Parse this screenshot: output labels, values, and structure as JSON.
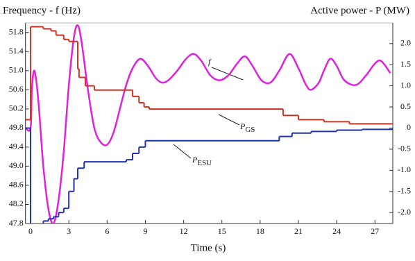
{
  "chart_data": {
    "type": "line",
    "y_label": "Frequency - f (Hz)",
    "y2_label": "Active power - P (MW)",
    "x_label": "Time (s)",
    "xlim": [
      -0.4,
      28.4
    ],
    "xticks": [
      0,
      3,
      6,
      9,
      12,
      15,
      18,
      21,
      24,
      27
    ],
    "ylim": [
      47.8,
      52.0
    ],
    "yticks": [
      51.8,
      51.4,
      {
        "value": 51.0,
        "label": "51.0"
      },
      50.6,
      50.2,
      49.8,
      49.4,
      {
        "value": 49.0,
        "label": "49.0"
      },
      48.6,
      48.2,
      47.8
    ],
    "y2lim": [
      -2.26,
      2.49
    ],
    "y2ticks": [
      {
        "value": 2,
        "label": "2.0"
      },
      1.5,
      {
        "value": 1,
        "label": "1.0"
      },
      0.5,
      0,
      -0.5,
      {
        "value": -1,
        "label": "-1.0"
      },
      -1.5,
      {
        "value": -2,
        "label": "-2.0"
      }
    ],
    "series": [
      {
        "name": "f",
        "color": "#e020e0",
        "style": "smooth",
        "x": [
          -0.4,
          0,
          0.1,
          0.3,
          0.6,
          1.0,
          1.4,
          1.8,
          2.2,
          2.6,
          3.0,
          3.4,
          3.7,
          4.0,
          4.5,
          5.0,
          5.5,
          6.0,
          6.5,
          7.0,
          7.5,
          8.0,
          8.6,
          9.2,
          9.8,
          10.3,
          10.8,
          11.5,
          12.2,
          12.8,
          13.4,
          14.1,
          14.8,
          15.5,
          16.2,
          16.8,
          17.4,
          18.1,
          18.8,
          19.5,
          20.3,
          21.0,
          21.6,
          22.0,
          22.6,
          23.0,
          23.5,
          24.0,
          24.6,
          25.5,
          26.3,
          27.0,
          27.5,
          28.2
        ],
        "values": [
          49.8,
          49.8,
          50.6,
          51.0,
          50.4,
          49.0,
          48.1,
          47.8,
          48.3,
          49.3,
          50.7,
          51.7,
          51.95,
          51.6,
          50.6,
          49.8,
          49.5,
          49.45,
          49.7,
          50.2,
          50.7,
          51.05,
          51.25,
          51.1,
          50.85,
          50.75,
          50.8,
          51.0,
          51.25,
          51.35,
          51.2,
          50.9,
          50.8,
          50.9,
          51.15,
          51.3,
          51.1,
          50.8,
          50.75,
          51.0,
          51.35,
          51.05,
          50.7,
          50.6,
          50.75,
          51.0,
          51.25,
          51.1,
          50.8,
          50.7,
          50.9,
          51.15,
          51.2,
          50.95
        ]
      },
      {
        "name": "PGS",
        "color": "#d03020",
        "style": "step",
        "axis": "y2",
        "x": [
          -0.4,
          0,
          1.0,
          1.6,
          2.0,
          2.6,
          3.0,
          3.7,
          3.8,
          4.3,
          5.0,
          8.0,
          8.5,
          8.9,
          9.3,
          19.8,
          21.0,
          23.0,
          25.0,
          28.4
        ],
        "values": [
          0.2,
          2.4,
          2.35,
          2.3,
          2.2,
          2.1,
          2.05,
          1.4,
          1.2,
          1.0,
          0.9,
          0.75,
          0.6,
          0.5,
          0.45,
          0.3,
          0.2,
          0.15,
          0.1,
          0.1
        ]
      },
      {
        "name": "PESU",
        "color": "#2030b0",
        "style": "step",
        "axis": "y2",
        "x": [
          -0.4,
          0,
          1.0,
          1.4,
          1.8,
          2.2,
          2.6,
          3.0,
          3.4,
          3.7,
          4.2,
          7.5,
          8.0,
          8.5,
          9.0,
          19.5,
          20.5,
          22.0,
          24.0,
          26.0,
          28.4
        ],
        "values": [
          0,
          -2.4,
          -2.2,
          -2.15,
          -2.1,
          -2.0,
          -1.9,
          -1.5,
          -1.2,
          -0.95,
          -0.8,
          -0.75,
          -0.6,
          -0.45,
          -0.3,
          -0.2,
          -0.12,
          -0.08,
          -0.05,
          -0.03,
          -0.03
        ]
      }
    ],
    "annotations": [
      {
        "text": "f",
        "series": 0
      },
      {
        "text": "P",
        "sub": "GS",
        "series": 1
      },
      {
        "text": "P",
        "sub": "ESU",
        "series": 2
      }
    ]
  }
}
